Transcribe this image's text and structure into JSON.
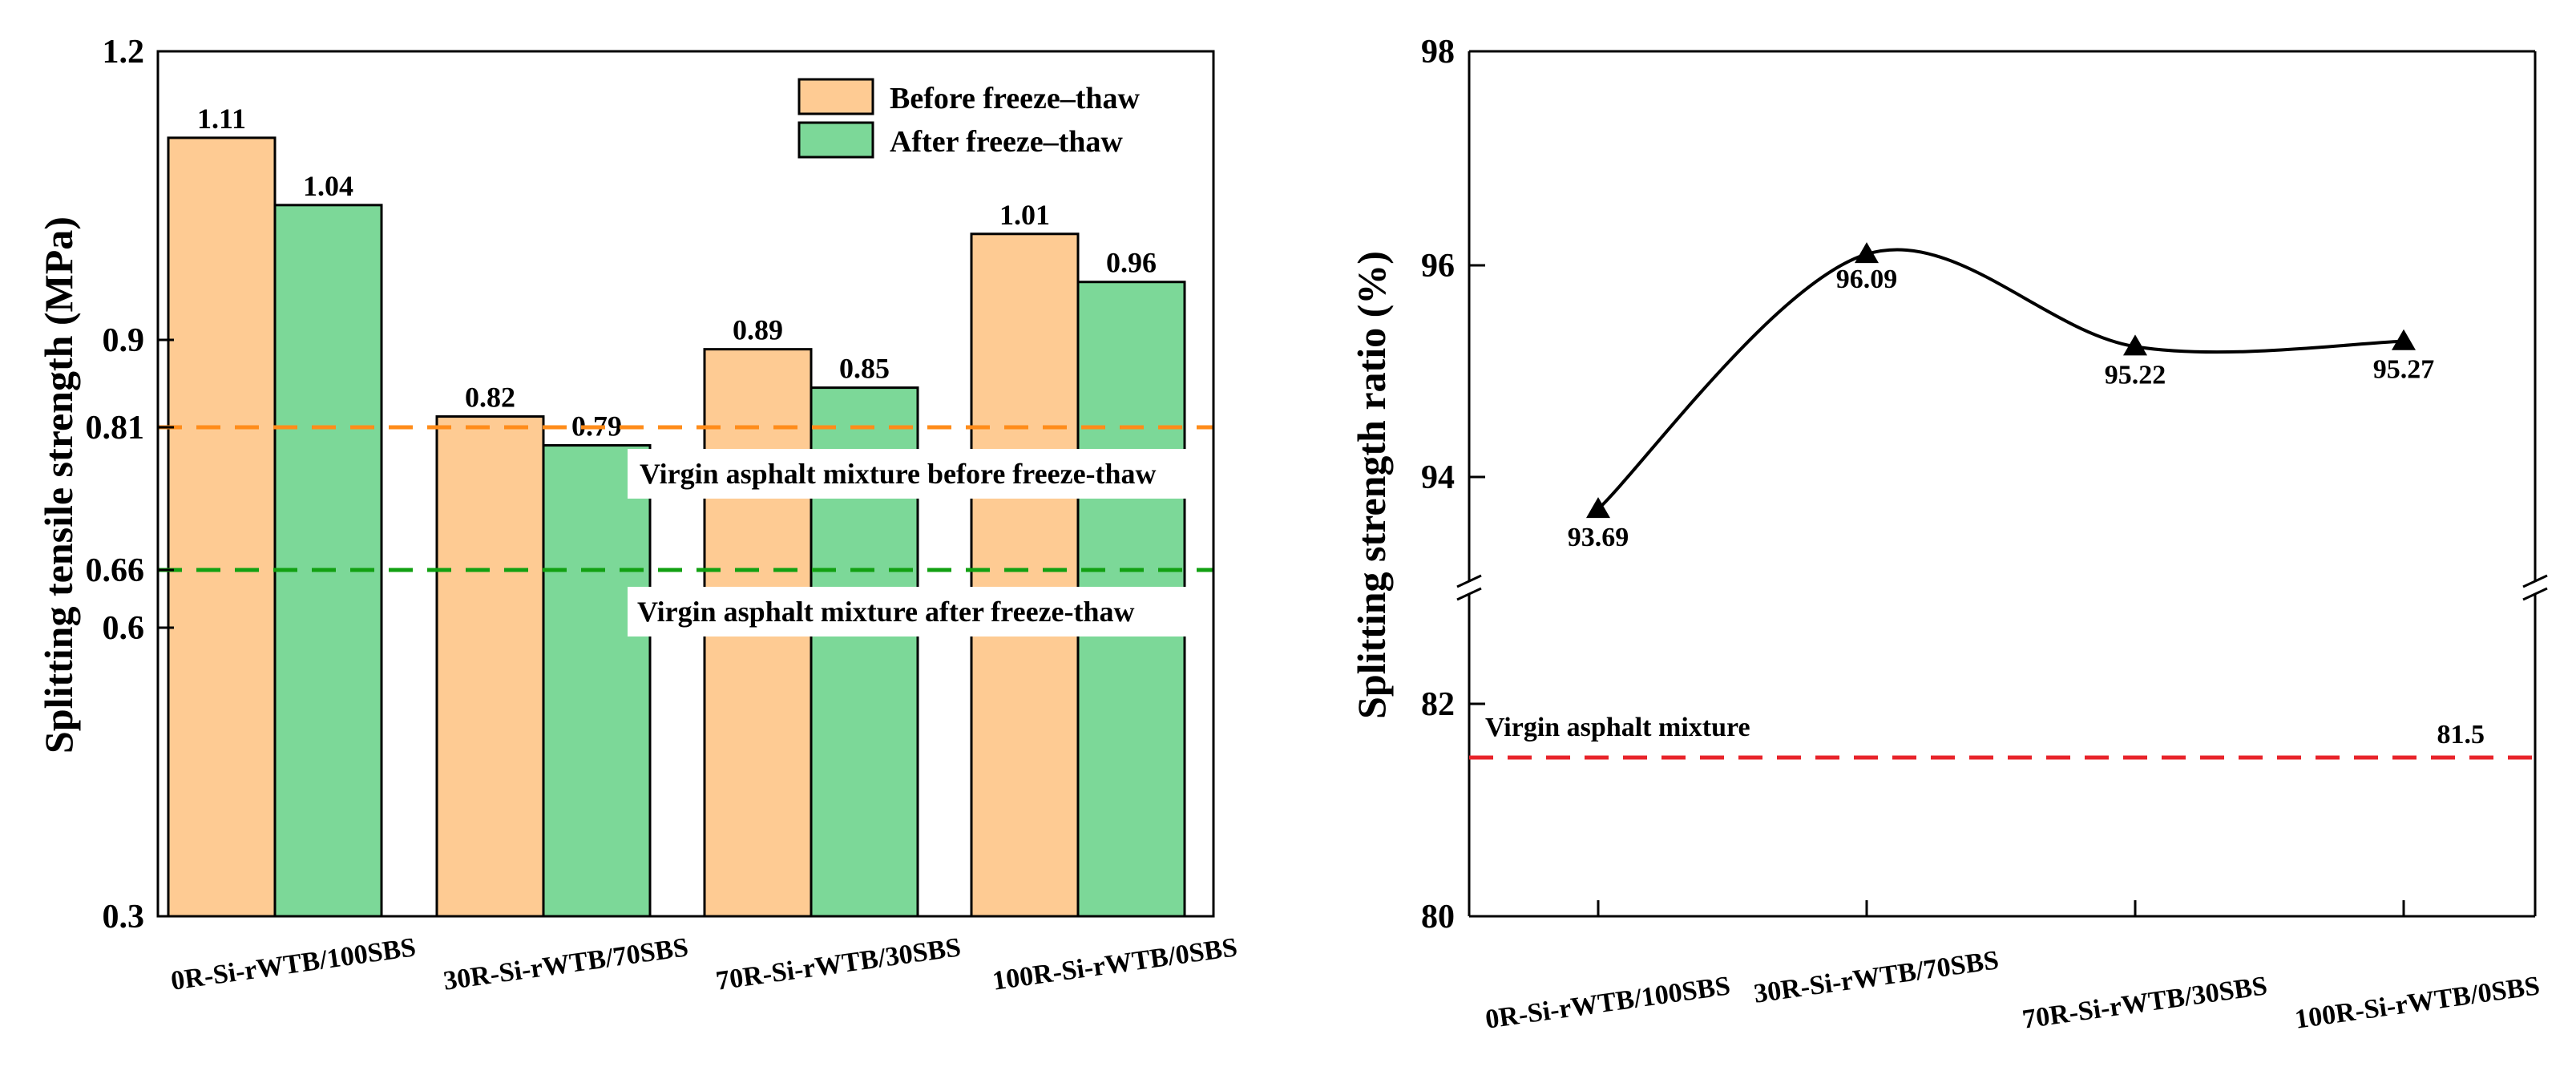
{
  "colors": {
    "before_fill": "#FECB93",
    "after_fill": "#7CD898",
    "orange_line": "#FF8C1A",
    "green_line": "#12A012",
    "red_line": "#E8232A",
    "axis": "#000000"
  },
  "chart_data": [
    {
      "type": "bar",
      "title": "",
      "xlabel": "",
      "ylabel": "Splitting tensile strength (MPa)",
      "ylim": [
        0.3,
        1.2
      ],
      "yticks": [
        "0.3",
        "0.6",
        "0.66",
        "0.81",
        "0.9",
        "1.2"
      ],
      "categories": [
        "0R-Si-rWTB/100SBS",
        "30R-Si-rWTB/70SBS",
        "70R-Si-rWTB/30SBS",
        "100R-Si-rWTB/0SBS"
      ],
      "series": [
        {
          "name": "Before freeze–thaw",
          "values": [
            1.11,
            0.82,
            0.89,
            1.01
          ],
          "labels": [
            "1.11",
            "0.82",
            "0.89",
            "1.01"
          ],
          "color": "#FECB93"
        },
        {
          "name": "After freeze–thaw",
          "values": [
            1.04,
            0.79,
            0.85,
            0.96
          ],
          "labels": [
            "1.04",
            "0.79",
            "0.85",
            "0.96"
          ],
          "color": "#7CD898"
        }
      ],
      "legend_position": "top-right",
      "reference_lines": [
        {
          "value": 0.81,
          "label": "Virgin asphalt mixture before freeze-thaw",
          "color": "#FF8C1A"
        },
        {
          "value": 0.66,
          "label": "Virgin asphalt mixture after freeze-thaw",
          "color": "#12A012"
        }
      ]
    },
    {
      "type": "line",
      "title": "",
      "xlabel": "",
      "ylabel": "Splitting strength ratio (%)",
      "axis_break": true,
      "ylim_upper": [
        93,
        98
      ],
      "ylim_lower": [
        80,
        83
      ],
      "yticks": [
        "80",
        "82",
        "94",
        "96",
        "98"
      ],
      "categories": [
        "0R-Si-rWTB/100SBS",
        "30R-Si-rWTB/70SBS",
        "70R-Si-rWTB/30SBS",
        "100R-Si-rWTB/0SBS"
      ],
      "series": [
        {
          "name": "Splitting strength ratio",
          "values": [
            93.69,
            96.09,
            95.22,
            95.27
          ],
          "labels": [
            "93.69",
            "96.09",
            "95.22",
            "95.27"
          ],
          "marker": "triangle",
          "smooth": true
        }
      ],
      "reference_lines": [
        {
          "value": 81.5,
          "label": "Virgin asphalt mixture",
          "value_label": "81.5",
          "color": "#E8232A"
        }
      ]
    }
  ]
}
